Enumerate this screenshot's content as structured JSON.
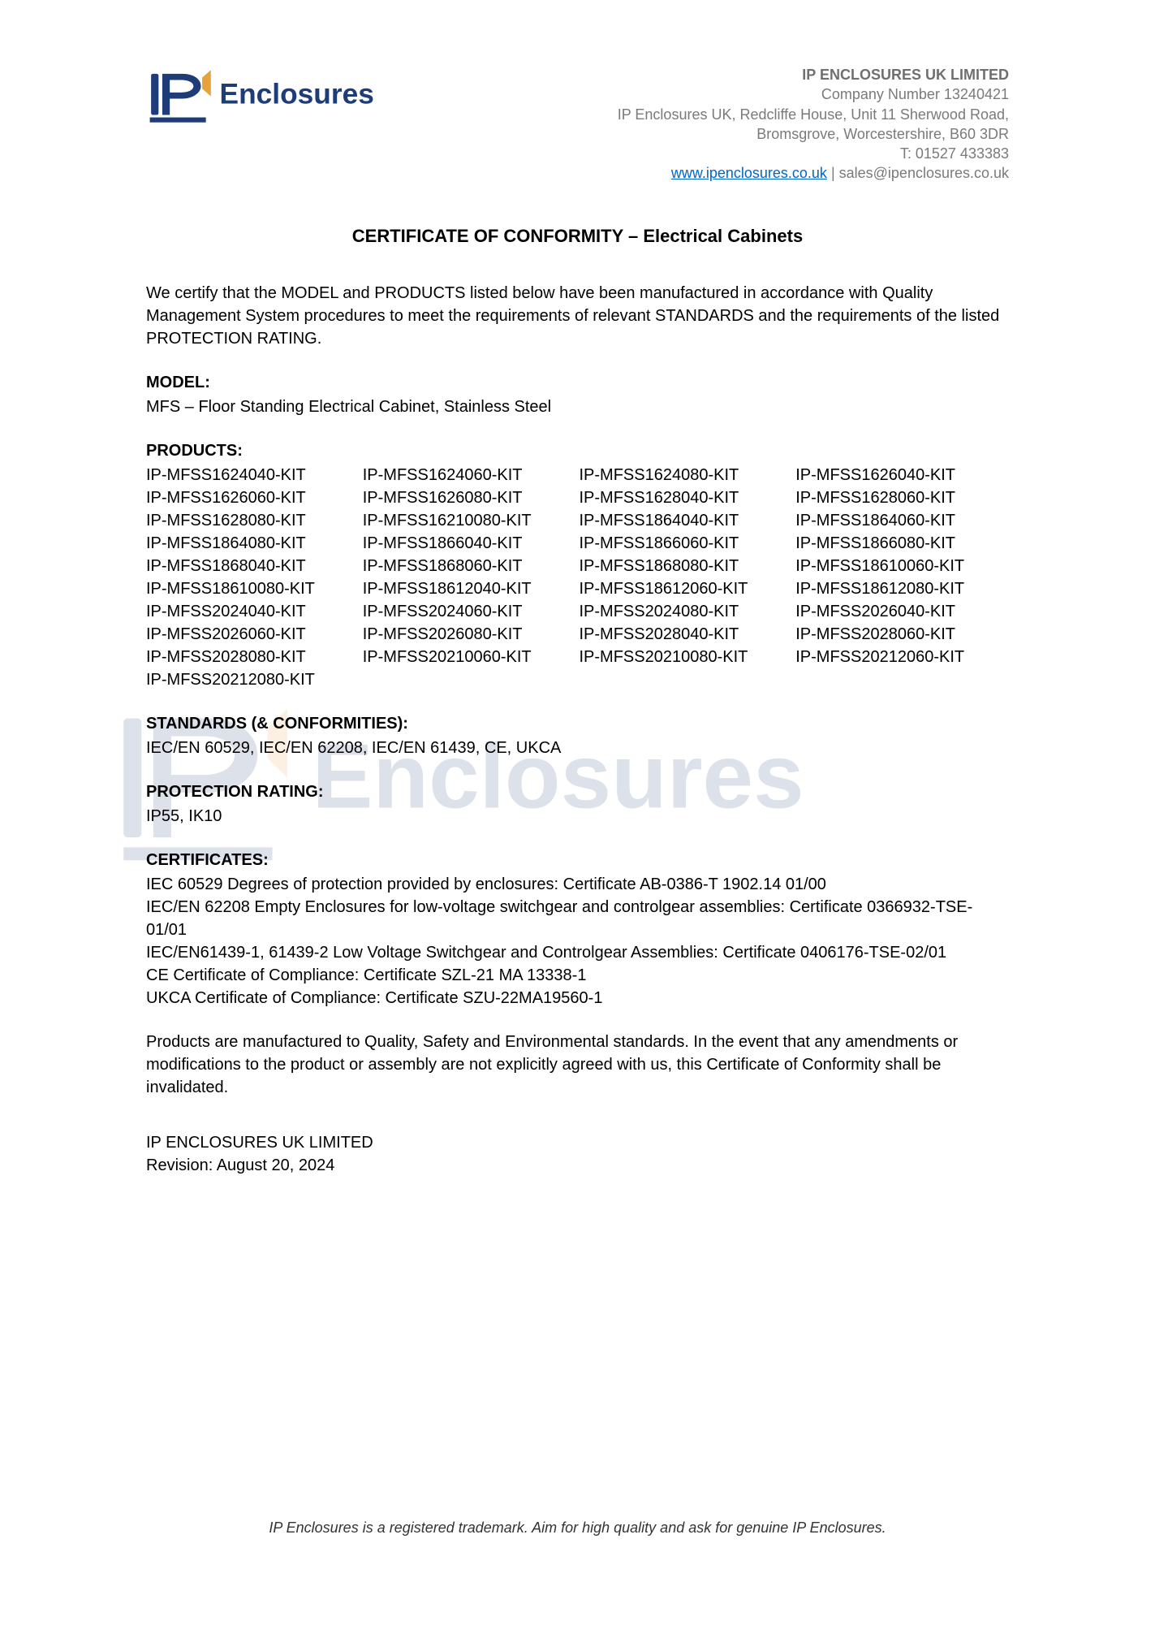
{
  "colors": {
    "brand_blue": "#1e3c78",
    "brand_orange": "#e8a23c",
    "text_gray": "#7a7a7a",
    "link_blue": "#0066cc",
    "background": "#ffffff",
    "text": "#000000"
  },
  "logo": {
    "brand_text": "Enclosures"
  },
  "company": {
    "name": "IP ENCLOSURES UK LIMITED",
    "company_number": "Company Number 13240421",
    "address_line1": "IP Enclosures UK, Redcliffe House, Unit 11 Sherwood Road,",
    "address_line2": "Bromsgrove, Worcestershire, B60 3DR",
    "phone": "T: 01527 433383",
    "website": "www.ipenclosures.co.uk",
    "email": "sales@ipenclosures.co.uk"
  },
  "title": "CERTIFICATE OF CONFORMITY – Electrical Cabinets",
  "intro": "We certify that the MODEL and PRODUCTS listed below have been manufactured in accordance with Quality Management System procedures to meet the requirements of relevant STANDARDS and the requirements of the listed PROTECTION RATING.",
  "model": {
    "heading": "MODEL:",
    "value": "MFS – Floor Standing Electrical Cabinet, Stainless Steel"
  },
  "products": {
    "heading": "PRODUCTS:",
    "items": [
      "IP-MFSS1624040-KIT",
      "IP-MFSS1624060-KIT",
      "IP-MFSS1624080-KIT",
      "IP-MFSS1626040-KIT",
      "IP-MFSS1626060-KIT",
      "IP-MFSS1626080-KIT",
      "IP-MFSS1628040-KIT",
      "IP-MFSS1628060-KIT",
      "IP-MFSS1628080-KIT",
      "IP-MFSS16210080-KIT",
      "IP-MFSS1864040-KIT",
      "IP-MFSS1864060-KIT",
      "IP-MFSS1864080-KIT",
      "IP-MFSS1866040-KIT",
      "IP-MFSS1866060-KIT",
      "IP-MFSS1866080-KIT",
      "IP-MFSS1868040-KIT",
      "IP-MFSS1868060-KIT",
      "IP-MFSS1868080-KIT",
      "IP-MFSS18610060-KIT",
      "IP-MFSS18610080-KIT",
      "IP-MFSS18612040-KIT",
      "IP-MFSS18612060-KIT",
      "IP-MFSS18612080-KIT",
      "IP-MFSS2024040-KIT",
      "IP-MFSS2024060-KIT",
      "IP-MFSS2024080-KIT",
      "IP-MFSS2026040-KIT",
      "IP-MFSS2026060-KIT",
      "IP-MFSS2026080-KIT",
      "IP-MFSS2028040-KIT",
      "IP-MFSS2028060-KIT",
      "IP-MFSS2028080-KIT",
      "IP-MFSS20210060-KIT",
      "IP-MFSS20210080-KIT",
      "IP-MFSS20212060-KIT",
      "IP-MFSS20212080-KIT"
    ]
  },
  "standards": {
    "heading": "STANDARDS (& CONFORMITIES):",
    "value": "IEC/EN 60529, IEC/EN 62208, IEC/EN 61439, CE, UKCA"
  },
  "protection": {
    "heading": "PROTECTION RATING:",
    "value": "IP55, IK10"
  },
  "certificates": {
    "heading": "CERTIFICATES:",
    "lines": [
      "IEC 60529 Degrees of protection provided by enclosures: Certificate AB-0386-T 1902.14 01/00",
      "IEC/EN 62208 Empty Enclosures for low-voltage switchgear and controlgear assemblies: Certificate 0366932-TSE-01/01",
      "IEC/EN61439-1, 61439-2 Low Voltage Switchgear and Controlgear Assemblies: Certificate 0406176-TSE-02/01",
      "CE Certificate of Compliance: Certificate SZL-21 MA 13338-1",
      "UKCA Certificate of Compliance: Certificate SZU-22MA19560-1"
    ]
  },
  "disclaimer": "Products are manufactured to Quality, Safety and Environmental standards. In the event that any amendments or modifications to the product or assembly are not explicitly agreed with us, this Certificate of Conformity shall be invalidated.",
  "signoff": {
    "company": "IP ENCLOSURES UK LIMITED",
    "revision": "Revision: August 20, 2024"
  },
  "footer": "IP Enclosures is a registered trademark. Aim for high quality and ask for genuine IP Enclosures."
}
